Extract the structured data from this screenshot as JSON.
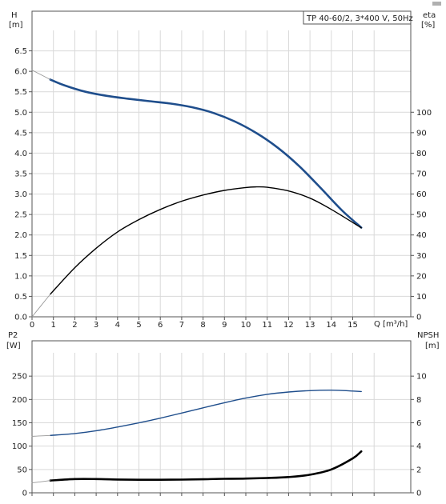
{
  "chart_data": [
    {
      "type": "line",
      "title": "TP 40-60/2, 3*400 V, 50Hz",
      "xlabel": "Q [m³/h]",
      "ylabel_left": "H",
      "ylabel_left_unit": "[m]",
      "ylabel_right": "eta",
      "ylabel_right_unit": "[%]",
      "xlim": [
        0,
        16
      ],
      "ylim_left": [
        0,
        7
      ],
      "ylim_right": [
        0,
        140
      ],
      "x_ticks": [
        "0",
        "1",
        "2",
        "3",
        "4",
        "5",
        "6",
        "7",
        "8",
        "9",
        "10",
        "11",
        "12",
        "13",
        "14",
        "15"
      ],
      "y_ticks_left": [
        "0.0",
        "0.5",
        "1.0",
        "1.5",
        "2.0",
        "2.5",
        "3.0",
        "3.5",
        "4.0",
        "4.5",
        "5.0",
        "5.5",
        "6.0",
        "6.5"
      ],
      "y_ticks_right": [
        "0",
        "10",
        "20",
        "30",
        "40",
        "50",
        "60",
        "70",
        "80",
        "90",
        "100"
      ],
      "grid": true,
      "series": [
        {
          "name": "H",
          "axis": "left",
          "color": "#1f4e8c",
          "style": "thick",
          "x": [
            0.85,
            1.5,
            2.5,
            3.5,
            4.5,
            5.5,
            6.5,
            7.5,
            8.5,
            9.5,
            10.5,
            11.5,
            12.5,
            13.5,
            14.5,
            15.4
          ],
          "y": [
            5.8,
            5.66,
            5.5,
            5.4,
            5.33,
            5.27,
            5.21,
            5.12,
            4.98,
            4.77,
            4.49,
            4.13,
            3.68,
            3.15,
            2.6,
            2.18
          ]
        },
        {
          "name": "H extension",
          "axis": "left",
          "color": "#999999",
          "style": "thin",
          "x": [
            0,
            0.85
          ],
          "y": [
            6.03,
            5.8
          ]
        },
        {
          "name": "eta",
          "axis": "right",
          "color": "#000000",
          "style": "normal",
          "x": [
            0.85,
            2,
            3,
            4,
            5,
            6,
            7,
            8,
            9,
            10,
            10.5,
            11,
            12,
            13,
            14,
            15.4
          ],
          "y": [
            11,
            24,
            33.5,
            41.5,
            47.5,
            52.5,
            56.5,
            59.5,
            61.8,
            63.2,
            63.5,
            63.3,
            61.5,
            58,
            52.5,
            43.5
          ]
        },
        {
          "name": "eta extension",
          "axis": "right",
          "color": "#999999",
          "style": "thin",
          "x": [
            0,
            0.85
          ],
          "y": [
            0,
            11
          ]
        }
      ]
    },
    {
      "type": "line",
      "xlabel": "",
      "ylabel_left": "P2",
      "ylabel_left_unit": "[W]",
      "ylabel_right": "NPSH",
      "ylabel_right_unit": "[m]",
      "xlim": [
        0,
        16
      ],
      "ylim_left": [
        0,
        300
      ],
      "ylim_right": [
        0,
        12
      ],
      "y_ticks_left": [
        "0",
        "50",
        "100",
        "150",
        "200",
        "250"
      ],
      "y_ticks_right": [
        "0",
        "2",
        "4",
        "6",
        "8",
        "10"
      ],
      "grid": true,
      "series": [
        {
          "name": "P2",
          "axis": "left",
          "color": "#1f4e8c",
          "style": "normal",
          "x": [
            0.85,
            2,
            3,
            4,
            5,
            6,
            7,
            8,
            9,
            10,
            11,
            12,
            13,
            14,
            15,
            15.4
          ],
          "y": [
            123,
            127,
            133,
            141,
            150,
            160,
            171,
            182,
            193,
            203,
            211,
            216,
            219,
            220,
            218,
            217
          ]
        },
        {
          "name": "P2 extension",
          "axis": "left",
          "color": "#999999",
          "style": "thin",
          "x": [
            0,
            0.85
          ],
          "y": [
            121,
            123
          ]
        },
        {
          "name": "NPSH",
          "axis": "right",
          "color": "#000000",
          "style": "thick",
          "x": [
            0.85,
            2,
            3,
            4,
            5,
            6,
            7,
            8,
            9,
            10,
            11,
            12,
            13,
            14,
            15,
            15.4
          ],
          "y": [
            1.05,
            1.18,
            1.18,
            1.14,
            1.12,
            1.12,
            1.13,
            1.16,
            1.2,
            1.22,
            1.27,
            1.35,
            1.55,
            2.0,
            2.95,
            3.55
          ]
        },
        {
          "name": "NPSH extension",
          "axis": "right",
          "color": "#999999",
          "style": "thin",
          "x": [
            0,
            0.85
          ],
          "y": [
            0.85,
            1.05
          ]
        }
      ]
    }
  ]
}
